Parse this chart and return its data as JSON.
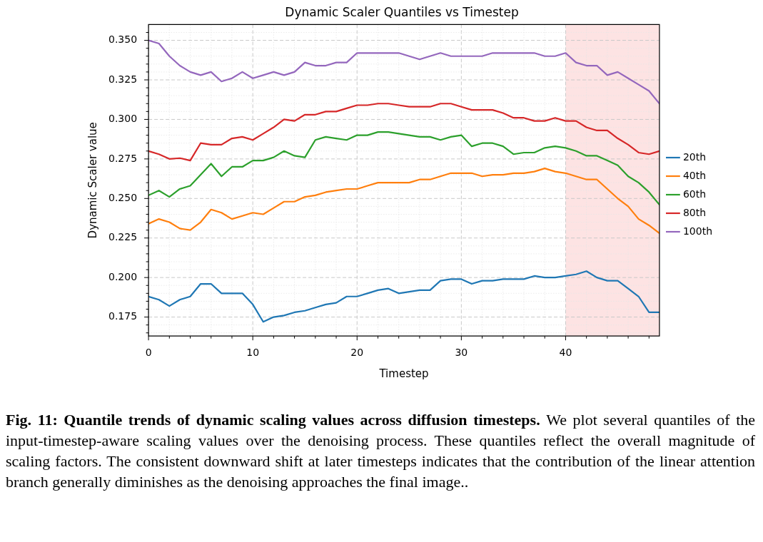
{
  "chart_data": {
    "type": "line",
    "title": "Dynamic Scaler Quantiles vs Timestep",
    "xlabel": "Timestep",
    "ylabel": "Dynamic Scaler value",
    "x": [
      0,
      1,
      2,
      3,
      4,
      5,
      6,
      7,
      8,
      9,
      10,
      11,
      12,
      13,
      14,
      15,
      16,
      17,
      18,
      19,
      20,
      21,
      22,
      23,
      24,
      25,
      26,
      27,
      28,
      29,
      30,
      31,
      32,
      33,
      34,
      35,
      36,
      37,
      38,
      39,
      40,
      41,
      42,
      43,
      44,
      45,
      46,
      47,
      48,
      49
    ],
    "series": [
      {
        "name": "20th",
        "color": "#1f77b4",
        "values": [
          0.188,
          0.186,
          0.182,
          0.186,
          0.188,
          0.196,
          0.196,
          0.19,
          0.19,
          0.19,
          0.183,
          0.172,
          0.175,
          0.176,
          0.178,
          0.179,
          0.181,
          0.183,
          0.184,
          0.188,
          0.188,
          0.19,
          0.192,
          0.193,
          0.19,
          0.191,
          0.192,
          0.192,
          0.198,
          0.199,
          0.199,
          0.196,
          0.198,
          0.198,
          0.199,
          0.199,
          0.199,
          0.201,
          0.2,
          0.2,
          0.201,
          0.202,
          0.204,
          0.2,
          0.198,
          0.198,
          0.193,
          0.188,
          0.178,
          0.178
        ]
      },
      {
        "name": "40th",
        "color": "#ff7f0e",
        "values": [
          0.234,
          0.237,
          0.235,
          0.231,
          0.23,
          0.235,
          0.243,
          0.241,
          0.237,
          0.239,
          0.241,
          0.24,
          0.244,
          0.248,
          0.248,
          0.251,
          0.252,
          0.254,
          0.255,
          0.256,
          0.256,
          0.258,
          0.26,
          0.26,
          0.26,
          0.26,
          0.262,
          0.262,
          0.264,
          0.266,
          0.266,
          0.266,
          0.264,
          0.265,
          0.265,
          0.266,
          0.266,
          0.267,
          0.269,
          0.267,
          0.266,
          0.264,
          0.262,
          0.262,
          0.256,
          0.25,
          0.245,
          0.237,
          0.233,
          0.228
        ]
      },
      {
        "name": "60th",
        "color": "#2ca02c",
        "values": [
          0.252,
          0.255,
          0.251,
          0.256,
          0.258,
          0.265,
          0.272,
          0.264,
          0.27,
          0.27,
          0.274,
          0.274,
          0.276,
          0.28,
          0.277,
          0.276,
          0.287,
          0.289,
          0.288,
          0.287,
          0.29,
          0.29,
          0.292,
          0.292,
          0.291,
          0.29,
          0.289,
          0.289,
          0.287,
          0.289,
          0.29,
          0.283,
          0.285,
          0.285,
          0.283,
          0.278,
          0.279,
          0.279,
          0.282,
          0.283,
          0.282,
          0.28,
          0.277,
          0.277,
          0.274,
          0.271,
          0.264,
          0.26,
          0.254,
          0.246
        ]
      },
      {
        "name": "80th",
        "color": "#d62728",
        "values": [
          0.28,
          0.278,
          0.275,
          0.2755,
          0.274,
          0.285,
          0.284,
          0.284,
          0.288,
          0.289,
          0.287,
          0.291,
          0.295,
          0.3,
          0.299,
          0.303,
          0.303,
          0.305,
          0.305,
          0.307,
          0.309,
          0.309,
          0.31,
          0.31,
          0.309,
          0.308,
          0.308,
          0.308,
          0.31,
          0.31,
          0.308,
          0.306,
          0.306,
          0.306,
          0.304,
          0.301,
          0.301,
          0.299,
          0.299,
          0.301,
          0.299,
          0.299,
          0.295,
          0.293,
          0.293,
          0.288,
          0.284,
          0.279,
          0.278,
          0.28
        ]
      },
      {
        "name": "100th",
        "color": "#9467bd",
        "values": [
          0.35,
          0.348,
          0.34,
          0.334,
          0.33,
          0.328,
          0.33,
          0.324,
          0.326,
          0.33,
          0.326,
          0.328,
          0.33,
          0.328,
          0.33,
          0.336,
          0.334,
          0.334,
          0.336,
          0.336,
          0.342,
          0.342,
          0.342,
          0.342,
          0.342,
          0.34,
          0.338,
          0.34,
          0.342,
          0.34,
          0.34,
          0.34,
          0.34,
          0.342,
          0.342,
          0.342,
          0.342,
          0.342,
          0.34,
          0.34,
          0.342,
          0.336,
          0.334,
          0.334,
          0.328,
          0.33,
          0.326,
          0.322,
          0.318,
          0.31
        ]
      }
    ],
    "xlim": [
      0,
      49
    ],
    "xticks": [
      0,
      {
        "value": 2,
        "label": null
      },
      {
        "value": 4,
        "label": null
      },
      {
        "value": 6,
        "label": null
      },
      {
        "value": 8,
        "label": null
      },
      10,
      {
        "value": 12,
        "label": null
      },
      {
        "value": 14,
        "label": null
      },
      {
        "value": 16,
        "label": null
      },
      {
        "value": 18,
        "label": null
      },
      20,
      {
        "value": 22,
        "label": null
      },
      {
        "value": 24,
        "label": null
      },
      {
        "value": 26,
        "label": null
      },
      {
        "value": 28,
        "label": null
      },
      30,
      {
        "value": 32,
        "label": null
      },
      {
        "value": 34,
        "label": null
      },
      {
        "value": 36,
        "label": null
      },
      {
        "value": 38,
        "label": null
      },
      40,
      {
        "value": 42,
        "label": null
      },
      {
        "value": 44,
        "label": null
      },
      {
        "value": 46,
        "label": null
      },
      {
        "value": 48,
        "label": null
      }
    ],
    "ylim": [
      0.163,
      0.36
    ],
    "yticks": [
      {
        "value": 0.165,
        "label": null
      },
      {
        "value": 0.17,
        "label": null
      },
      {
        "value": 0.175,
        "label": "0.175"
      },
      {
        "value": 0.18,
        "label": null
      },
      {
        "value": 0.185,
        "label": null
      },
      {
        "value": 0.19,
        "label": null
      },
      {
        "value": 0.195,
        "label": null
      },
      {
        "value": 0.2,
        "label": "0.200"
      },
      {
        "value": 0.205,
        "label": null
      },
      {
        "value": 0.21,
        "label": null
      },
      {
        "value": 0.215,
        "label": null
      },
      {
        "value": 0.22,
        "label": null
      },
      {
        "value": 0.225,
        "label": "0.225"
      },
      {
        "value": 0.23,
        "label": null
      },
      {
        "value": 0.235,
        "label": null
      },
      {
        "value": 0.24,
        "label": null
      },
      {
        "value": 0.245,
        "label": null
      },
      {
        "value": 0.25,
        "label": "0.250"
      },
      {
        "value": 0.255,
        "label": null
      },
      {
        "value": 0.26,
        "label": null
      },
      {
        "value": 0.265,
        "label": null
      },
      {
        "value": 0.27,
        "label": null
      },
      {
        "value": 0.275,
        "label": "0.275"
      },
      {
        "value": 0.28,
        "label": null
      },
      {
        "value": 0.285,
        "label": null
      },
      {
        "value": 0.29,
        "label": null
      },
      {
        "value": 0.295,
        "label": null
      },
      {
        "value": 0.3,
        "label": "0.300"
      },
      {
        "value": 0.305,
        "label": null
      },
      {
        "value": 0.31,
        "label": null
      },
      {
        "value": 0.315,
        "label": null
      },
      {
        "value": 0.32,
        "label": null
      },
      {
        "value": 0.325,
        "label": "0.325"
      },
      {
        "value": 0.33,
        "label": null
      },
      {
        "value": 0.335,
        "label": null
      },
      {
        "value": 0.34,
        "label": null
      },
      {
        "value": 0.345,
        "label": null
      },
      {
        "value": 0.35,
        "label": "0.350"
      },
      {
        "value": 0.355,
        "label": null
      }
    ],
    "bands": [
      {
        "axis": "x",
        "from": 40,
        "to": 49,
        "color": "#fde3e3"
      }
    ],
    "grid": true,
    "legend": "right",
    "marker": "none",
    "line_style": "solid",
    "annotations": [
      "Fig. 11: Quantile trends of dynamic scaling values across diffusion timesteps.",
      "We plot several quantiles of the input-timestep-aware scaling values over the denoising process. These quantiles reflect the overall magnitude of scaling factors. The consistent downward shift at later timesteps indicates that the contribution of the linear attention branch generally diminishes as the denoising approaches the final image.."
    ]
  }
}
